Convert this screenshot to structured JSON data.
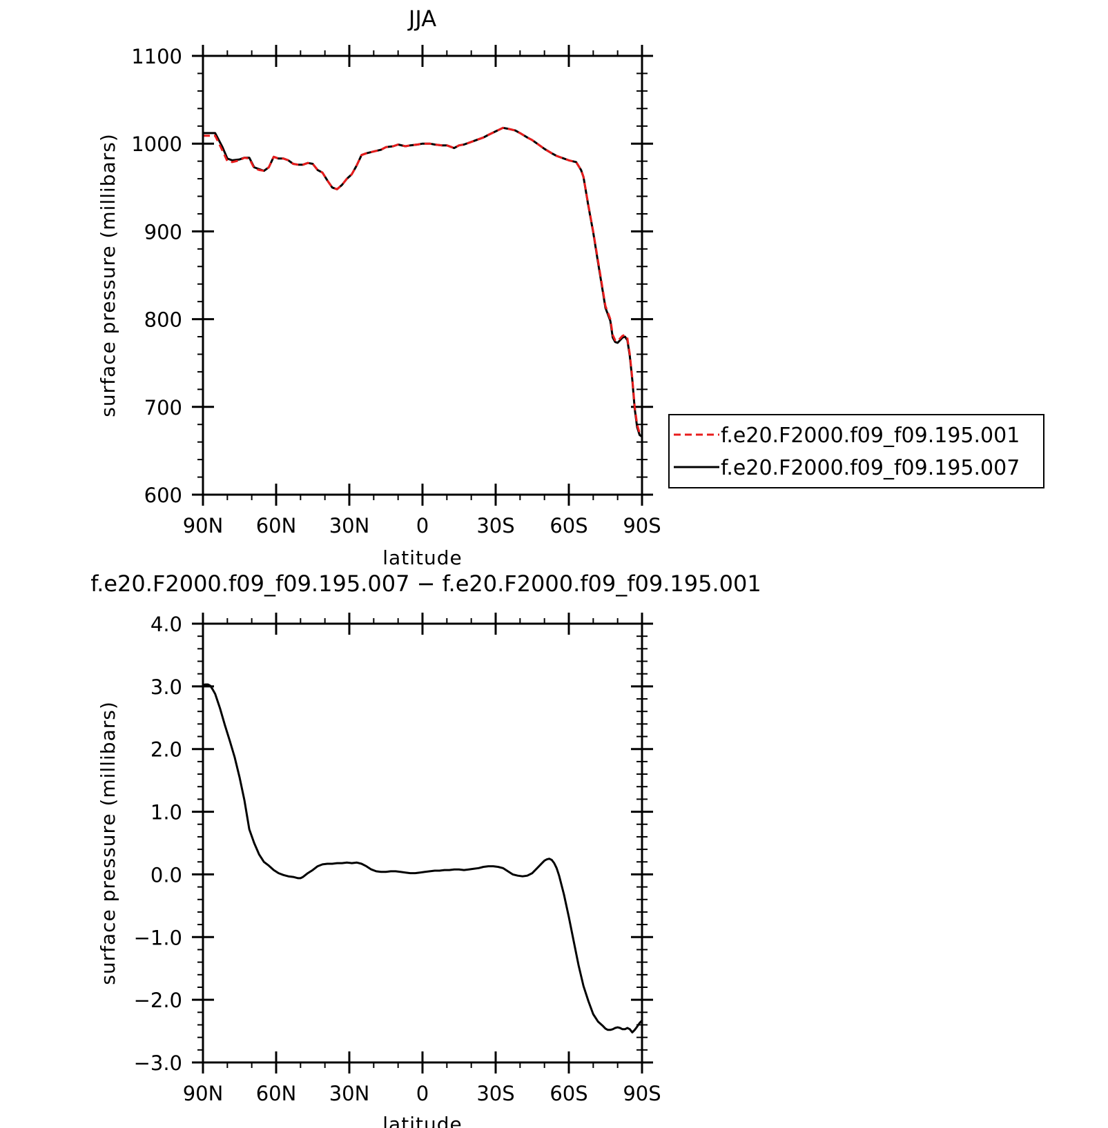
{
  "colors": {
    "series_001": "#e81c1c",
    "series_007": "#000000"
  },
  "chart_data": [
    {
      "type": "line",
      "title": "JJA",
      "xlabel": "latitude",
      "ylabel": "surface pressure (millibars)",
      "xlim": [
        90,
        -90
      ],
      "ylim": [
        600,
        1100
      ],
      "x_ticks": [
        {
          "v": 90,
          "label": "90N"
        },
        {
          "v": 60,
          "label": "60N"
        },
        {
          "v": 30,
          "label": "30N"
        },
        {
          "v": 0,
          "label": "0"
        },
        {
          "v": -30,
          "label": "30S"
        },
        {
          "v": -60,
          "label": "60S"
        },
        {
          "v": -90,
          "label": "90S"
        }
      ],
      "y_ticks": [
        {
          "v": 600,
          "label": "600"
        },
        {
          "v": 700,
          "label": "700"
        },
        {
          "v": 800,
          "label": "800"
        },
        {
          "v": 900,
          "label": "900"
        },
        {
          "v": 1000,
          "label": "1000"
        },
        {
          "v": 1100,
          "label": "1100"
        }
      ],
      "x_minor_step": 10,
      "y_minor_step": 20,
      "legend_position": "right",
      "series": [
        {
          "name": "f.e20.F2000.f09_f09.195.001",
          "style": "dashed",
          "x": [
            90,
            85,
            82,
            80,
            78,
            75,
            73,
            71,
            69,
            67,
            65,
            63,
            61,
            59,
            57,
            55,
            53,
            51,
            49,
            47,
            45,
            43,
            41,
            39,
            37,
            35,
            33,
            31,
            29,
            27,
            25,
            23,
            20,
            17,
            15,
            12,
            10,
            7,
            5,
            2,
            0,
            -3,
            -5,
            -8,
            -10,
            -13,
            -15,
            -17,
            -20,
            -23,
            -25,
            -27,
            -30,
            -33,
            -35,
            -38,
            -40,
            -43,
            -45,
            -48,
            -50,
            -53,
            -55,
            -58,
            -60,
            -63,
            -65,
            -66,
            -68,
            -70,
            -72,
            -74,
            -75,
            -77,
            -78,
            -79,
            -80,
            -81,
            -82,
            -83,
            -84,
            -85,
            -86,
            -87,
            -88,
            -89,
            -90
          ],
          "y": [
            1009,
            1009,
            992,
            980,
            979,
            981,
            984,
            983,
            972,
            970,
            969,
            973,
            985,
            983,
            983,
            981,
            977,
            976,
            976,
            978,
            977,
            970,
            967,
            958,
            950,
            948,
            953,
            960,
            965,
            975,
            987,
            989,
            991,
            993,
            996,
            997,
            999,
            997,
            998,
            999,
            1000,
            1000,
            999,
            998,
            998,
            995,
            998,
            999,
            1002,
            1005,
            1007,
            1010,
            1014,
            1018,
            1017,
            1015,
            1012,
            1007,
            1004,
            998,
            994,
            989,
            986,
            983,
            981,
            979,
            970,
            962,
            930,
            900,
            866,
            832,
            815,
            800,
            782,
            776,
            775,
            778,
            781,
            782,
            778,
            760,
            733,
            700,
            680,
            670,
            668
          ]
        },
        {
          "name": "f.e20.F2000.f09_f09.195.007",
          "style": "solid",
          "x": [
            90,
            85,
            82,
            80,
            78,
            75,
            73,
            71,
            69,
            67,
            65,
            63,
            61,
            59,
            57,
            55,
            53,
            51,
            49,
            47,
            45,
            43,
            41,
            39,
            37,
            35,
            33,
            31,
            29,
            27,
            25,
            23,
            20,
            17,
            15,
            12,
            10,
            7,
            5,
            2,
            0,
            -3,
            -5,
            -8,
            -10,
            -13,
            -15,
            -17,
            -20,
            -23,
            -25,
            -27,
            -30,
            -33,
            -35,
            -38,
            -40,
            -43,
            -45,
            -48,
            -50,
            -53,
            -55,
            -58,
            -60,
            -63,
            -65,
            -66,
            -68,
            -70,
            -72,
            -74,
            -75,
            -77,
            -78,
            -79,
            -80,
            -81,
            -82,
            -83,
            -84,
            -85,
            -86,
            -87,
            -88,
            -89,
            -90
          ],
          "y": [
            1012,
            1012,
            996,
            983,
            981,
            982,
            984,
            984,
            973,
            971,
            969,
            973,
            985,
            983,
            983,
            981,
            977,
            976,
            976,
            978,
            977,
            970,
            967,
            958,
            950,
            948,
            953,
            960,
            965,
            975,
            987,
            989,
            991,
            993,
            996,
            997,
            999,
            997,
            998,
            999,
            1000,
            1000,
            999,
            998,
            998,
            995,
            998,
            999,
            1002,
            1005,
            1007,
            1010,
            1014,
            1018,
            1017,
            1015,
            1012,
            1007,
            1004,
            998,
            994,
            989,
            986,
            983,
            981,
            979,
            970,
            962,
            929,
            899,
            864,
            830,
            813,
            798,
            779,
            774,
            773,
            776,
            779,
            780,
            776,
            758,
            731,
            698,
            677,
            668,
            666
          ]
        }
      ]
    },
    {
      "type": "line",
      "title": "f.e20.F2000.f09_f09.195.007 − f.e20.F2000.f09_f09.195.001",
      "xlabel": "latitude",
      "ylabel": "surface pressure (millibars)",
      "xlim": [
        90,
        -90
      ],
      "ylim": [
        -3.0,
        4.0
      ],
      "x_ticks": [
        {
          "v": 90,
          "label": "90N"
        },
        {
          "v": 60,
          "label": "60N"
        },
        {
          "v": 30,
          "label": "30N"
        },
        {
          "v": 0,
          "label": "0"
        },
        {
          "v": -30,
          "label": "30S"
        },
        {
          "v": -60,
          "label": "60S"
        },
        {
          "v": -90,
          "label": "90S"
        }
      ],
      "y_ticks": [
        {
          "v": -3,
          "label": "−3.0"
        },
        {
          "v": -2,
          "label": "−2.0"
        },
        {
          "v": -1,
          "label": "−1.0"
        },
        {
          "v": 0,
          "label": "0.0"
        },
        {
          "v": 1,
          "label": "1.0"
        },
        {
          "v": 2,
          "label": "2.0"
        },
        {
          "v": 3,
          "label": "3.0"
        },
        {
          "v": 4,
          "label": "4.0"
        }
      ],
      "x_minor_step": 10,
      "y_minor_step": 0.2,
      "series": [
        {
          "style": "solid",
          "x": [
            90,
            89,
            88,
            87,
            86,
            85,
            83,
            81,
            79,
            77,
            75,
            73,
            71,
            69,
            67,
            65,
            63,
            61,
            59,
            57,
            55,
            53,
            51,
            50,
            49,
            47,
            45,
            43,
            41,
            39,
            37,
            35,
            33,
            31,
            29,
            27,
            25,
            23,
            21,
            19,
            17,
            15,
            13,
            11,
            9,
            7,
            5,
            3,
            1,
            -1,
            -3,
            -5,
            -7,
            -9,
            -11,
            -13,
            -15,
            -17,
            -19,
            -21,
            -23,
            -25,
            -27,
            -29,
            -31,
            -33,
            -35,
            -37,
            -39,
            -41,
            -43,
            -45,
            -47,
            -49,
            -50,
            -51,
            -52,
            -53,
            -54,
            -55,
            -56,
            -58,
            -60,
            -62,
            -64,
            -66,
            -68,
            -70,
            -72,
            -74,
            -75,
            -76,
            -77,
            -78,
            -79,
            -80,
            -81,
            -82,
            -83,
            -84,
            -85,
            -86,
            -87,
            -88,
            -89,
            -90
          ],
          "y": [
            3.02,
            3.03,
            3.03,
            3.01,
            2.95,
            2.88,
            2.65,
            2.38,
            2.13,
            1.87,
            1.55,
            1.18,
            0.72,
            0.5,
            0.32,
            0.2,
            0.14,
            0.07,
            0.02,
            -0.01,
            -0.03,
            -0.04,
            -0.06,
            -0.06,
            -0.04,
            0.02,
            0.07,
            0.13,
            0.16,
            0.17,
            0.17,
            0.18,
            0.18,
            0.19,
            0.18,
            0.19,
            0.17,
            0.13,
            0.08,
            0.05,
            0.04,
            0.04,
            0.05,
            0.05,
            0.04,
            0.03,
            0.02,
            0.02,
            0.03,
            0.04,
            0.05,
            0.06,
            0.06,
            0.07,
            0.07,
            0.08,
            0.08,
            0.07,
            0.08,
            0.09,
            0.1,
            0.12,
            0.13,
            0.13,
            0.12,
            0.1,
            0.05,
            0.0,
            -0.02,
            -0.03,
            -0.02,
            0.02,
            0.1,
            0.18,
            0.22,
            0.24,
            0.25,
            0.23,
            0.18,
            0.1,
            -0.02,
            -0.32,
            -0.68,
            -1.07,
            -1.45,
            -1.78,
            -2.02,
            -2.23,
            -2.35,
            -2.42,
            -2.46,
            -2.48,
            -2.48,
            -2.47,
            -2.45,
            -2.44,
            -2.45,
            -2.47,
            -2.47,
            -2.45,
            -2.47,
            -2.52,
            -2.48,
            -2.43,
            -2.37,
            -2.33
          ]
        }
      ]
    }
  ]
}
